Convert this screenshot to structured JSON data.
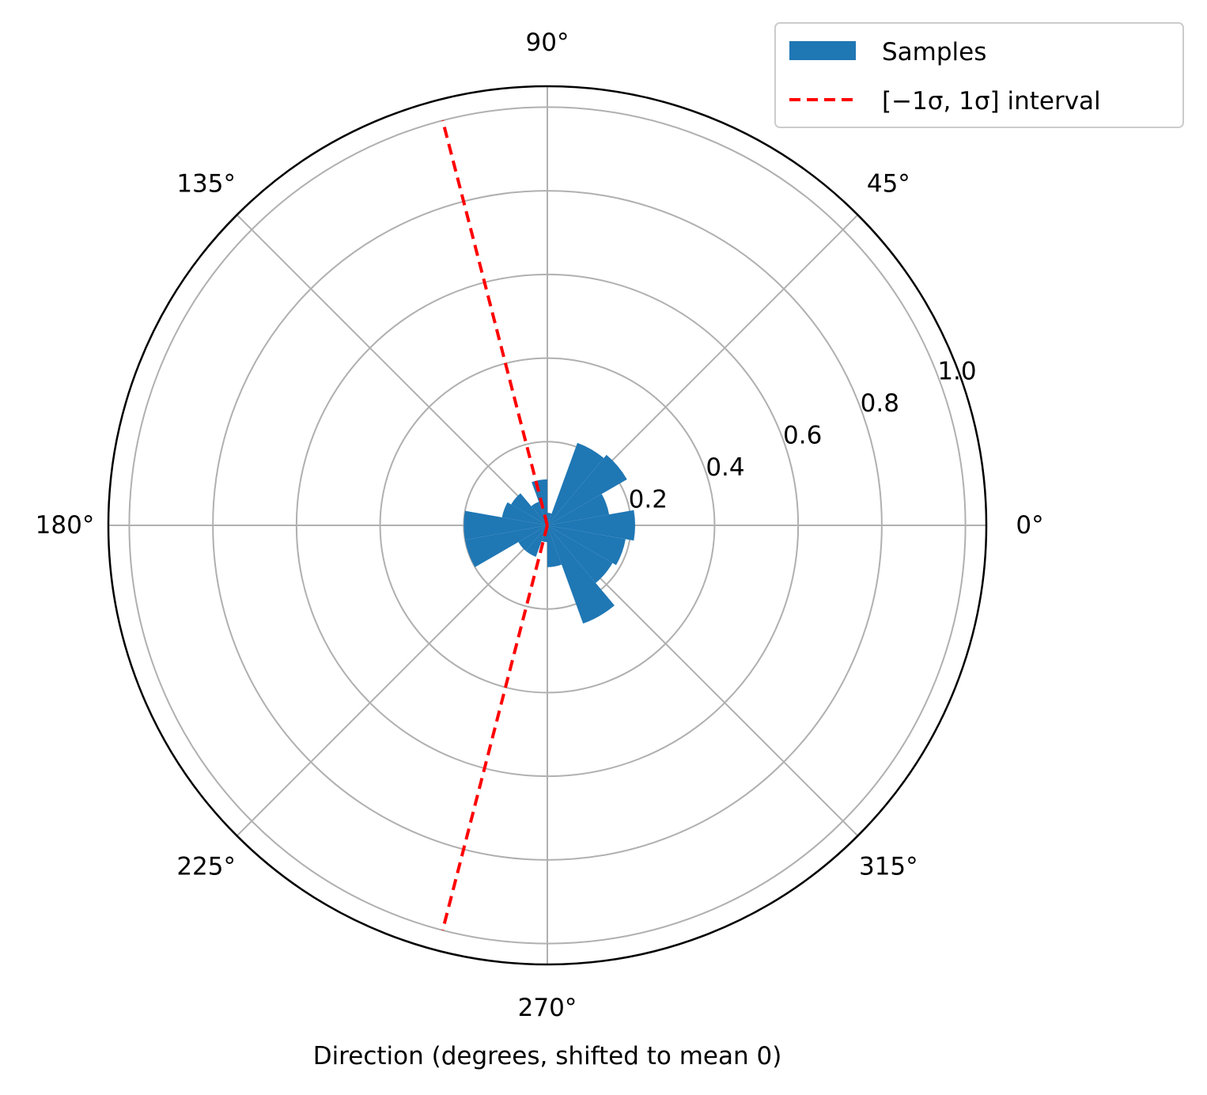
{
  "chart_data": {
    "type": "polar-histogram",
    "xlabel": "Direction (degrees, shifted to mean 0)",
    "angle_ticks": [
      "0°",
      "45°",
      "90°",
      "135°",
      "180°",
      "225°",
      "270°",
      "315°"
    ],
    "angle_tick_values_deg": [
      0,
      45,
      90,
      135,
      180,
      225,
      270,
      315
    ],
    "radial_ticks": [
      "0.2",
      "0.4",
      "0.6",
      "0.8",
      "1.0"
    ],
    "radial_tick_values": [
      0.2,
      0.4,
      0.6,
      0.8,
      1.0
    ],
    "rlim": [
      0,
      1.05
    ],
    "grid": true,
    "legend_position": "top-right",
    "legend": {
      "samples_label": "Samples",
      "interval_label": "[−1σ, 1σ] interval"
    },
    "series": [
      {
        "name": "Samples",
        "color": "#1f77b4",
        "bin_width_deg": 20,
        "bins": [
          {
            "start_deg": -10,
            "value": 0.21
          },
          {
            "start_deg": 10,
            "value": 0.15
          },
          {
            "start_deg": 30,
            "value": 0.22
          },
          {
            "start_deg": 50,
            "value": 0.21
          },
          {
            "start_deg": 70,
            "value": 0.03
          },
          {
            "start_deg": 90,
            "value": 0.11
          },
          {
            "start_deg": 110,
            "value": 0.06
          },
          {
            "start_deg": 130,
            "value": 0.1
          },
          {
            "start_deg": 150,
            "value": 0.11
          },
          {
            "start_deg": 170,
            "value": 0.2
          },
          {
            "start_deg": 190,
            "value": 0.2
          },
          {
            "start_deg": 210,
            "value": 0.08
          },
          {
            "start_deg": 230,
            "value": 0.08
          },
          {
            "start_deg": 250,
            "value": 0.04
          },
          {
            "start_deg": 270,
            "value": 0.1
          },
          {
            "start_deg": 290,
            "value": 0.25
          },
          {
            "start_deg": 310,
            "value": 0.18
          },
          {
            "start_deg": 330,
            "value": 0.19
          }
        ]
      },
      {
        "name": "[−1σ, 1σ] interval",
        "color": "#ff0000",
        "style": "dashed",
        "angles_deg": [
          104.5,
          255.5
        ],
        "r_max": 1.0
      }
    ]
  }
}
